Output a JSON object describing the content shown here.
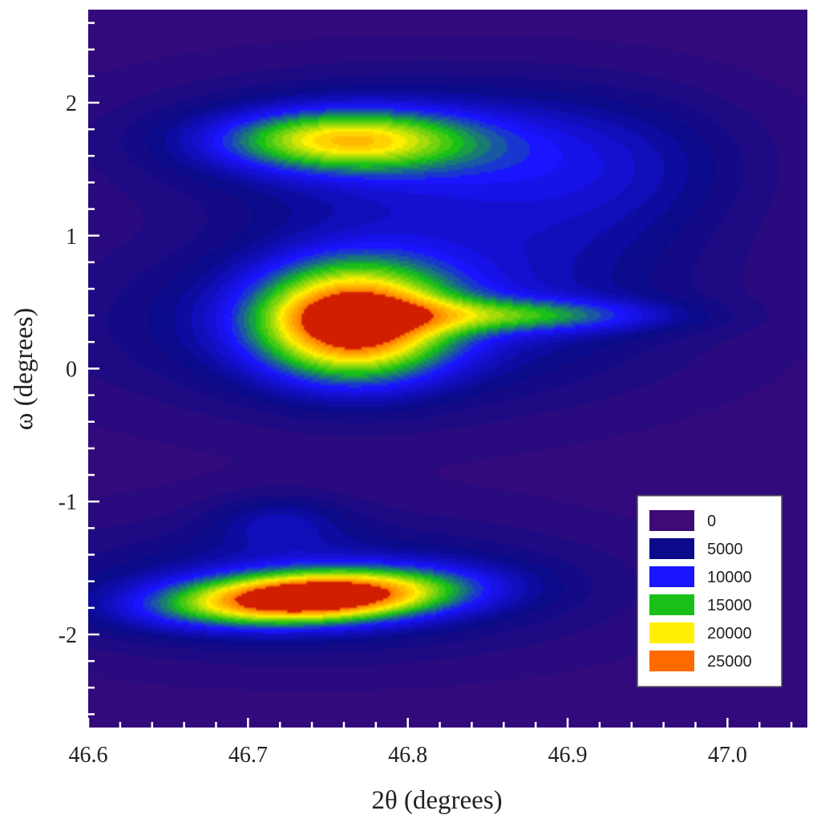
{
  "chart_data": {
    "type": "heatmap",
    "title": "",
    "xlabel": "2θ (degrees)",
    "ylabel": "ω (degrees)",
    "xlim": [
      46.6,
      47.05
    ],
    "ylim": [
      -2.7,
      2.7
    ],
    "x_ticks": [
      46.6,
      46.7,
      46.8,
      46.9,
      47.0
    ],
    "x_tick_labels": [
      "46.6",
      "46.7",
      "46.8",
      "46.9",
      "47.0"
    ],
    "y_ticks": [
      -2,
      -1,
      0,
      1,
      2
    ],
    "y_tick_labels": [
      "-2",
      "-1",
      "0",
      "1",
      "2"
    ],
    "grid": false,
    "legend_placement": "bottom-right",
    "colorscale": [
      {
        "level": 0,
        "label": "0",
        "color": "#3d0a78"
      },
      {
        "level": 5000,
        "label": "5000",
        "color": "#0a0a8a"
      },
      {
        "level": 10000,
        "label": "10000",
        "color": "#1a14ff"
      },
      {
        "level": 15000,
        "label": "15000",
        "color": "#18c018"
      },
      {
        "level": 20000,
        "label": "20000",
        "color": "#ffef00"
      },
      {
        "level": 25000,
        "label": "25000",
        "color": "#ff6a00"
      }
    ],
    "background_level": 1500,
    "peaks": [
      {
        "x": 46.765,
        "y": 0.35,
        "amplitude": 21500,
        "sx": 0.042,
        "sy": 0.3,
        "rot": 0.0
      },
      {
        "x": 46.74,
        "y": -1.72,
        "amplitude": 24500,
        "sx": 0.06,
        "sy": 0.14,
        "rot": -0.25
      },
      {
        "x": 46.76,
        "y": 1.72,
        "amplitude": 14000,
        "sx": 0.055,
        "sy": 0.16,
        "rot": 0.0
      },
      {
        "x": 46.87,
        "y": 0.4,
        "amplitude": 8500,
        "sx": 0.065,
        "sy": 0.09,
        "rot": 0.0
      },
      {
        "x": 46.78,
        "y": 0.35,
        "amplitude": 6500,
        "sx": 0.12,
        "sy": 0.45,
        "rot": 0.0
      },
      {
        "x": 46.79,
        "y": 1.7,
        "amplitude": 6000,
        "sx": 0.11,
        "sy": 0.35,
        "rot": 0.0
      },
      {
        "x": 46.74,
        "y": -1.65,
        "amplitude": 6000,
        "sx": 0.12,
        "sy": 0.35,
        "rot": 0.0
      },
      {
        "x": 46.72,
        "y": -1.15,
        "amplitude": 4000,
        "sx": 0.03,
        "sy": 0.15,
        "rot": 0.0
      },
      {
        "x": 46.85,
        "y": 1.1,
        "amplitude": 3500,
        "sx": 0.09,
        "sy": 0.5,
        "rot": 0.0
      },
      {
        "x": 46.93,
        "y": 1.5,
        "amplitude": 3000,
        "sx": 0.06,
        "sy": 0.4,
        "rot": 0.0
      }
    ]
  }
}
